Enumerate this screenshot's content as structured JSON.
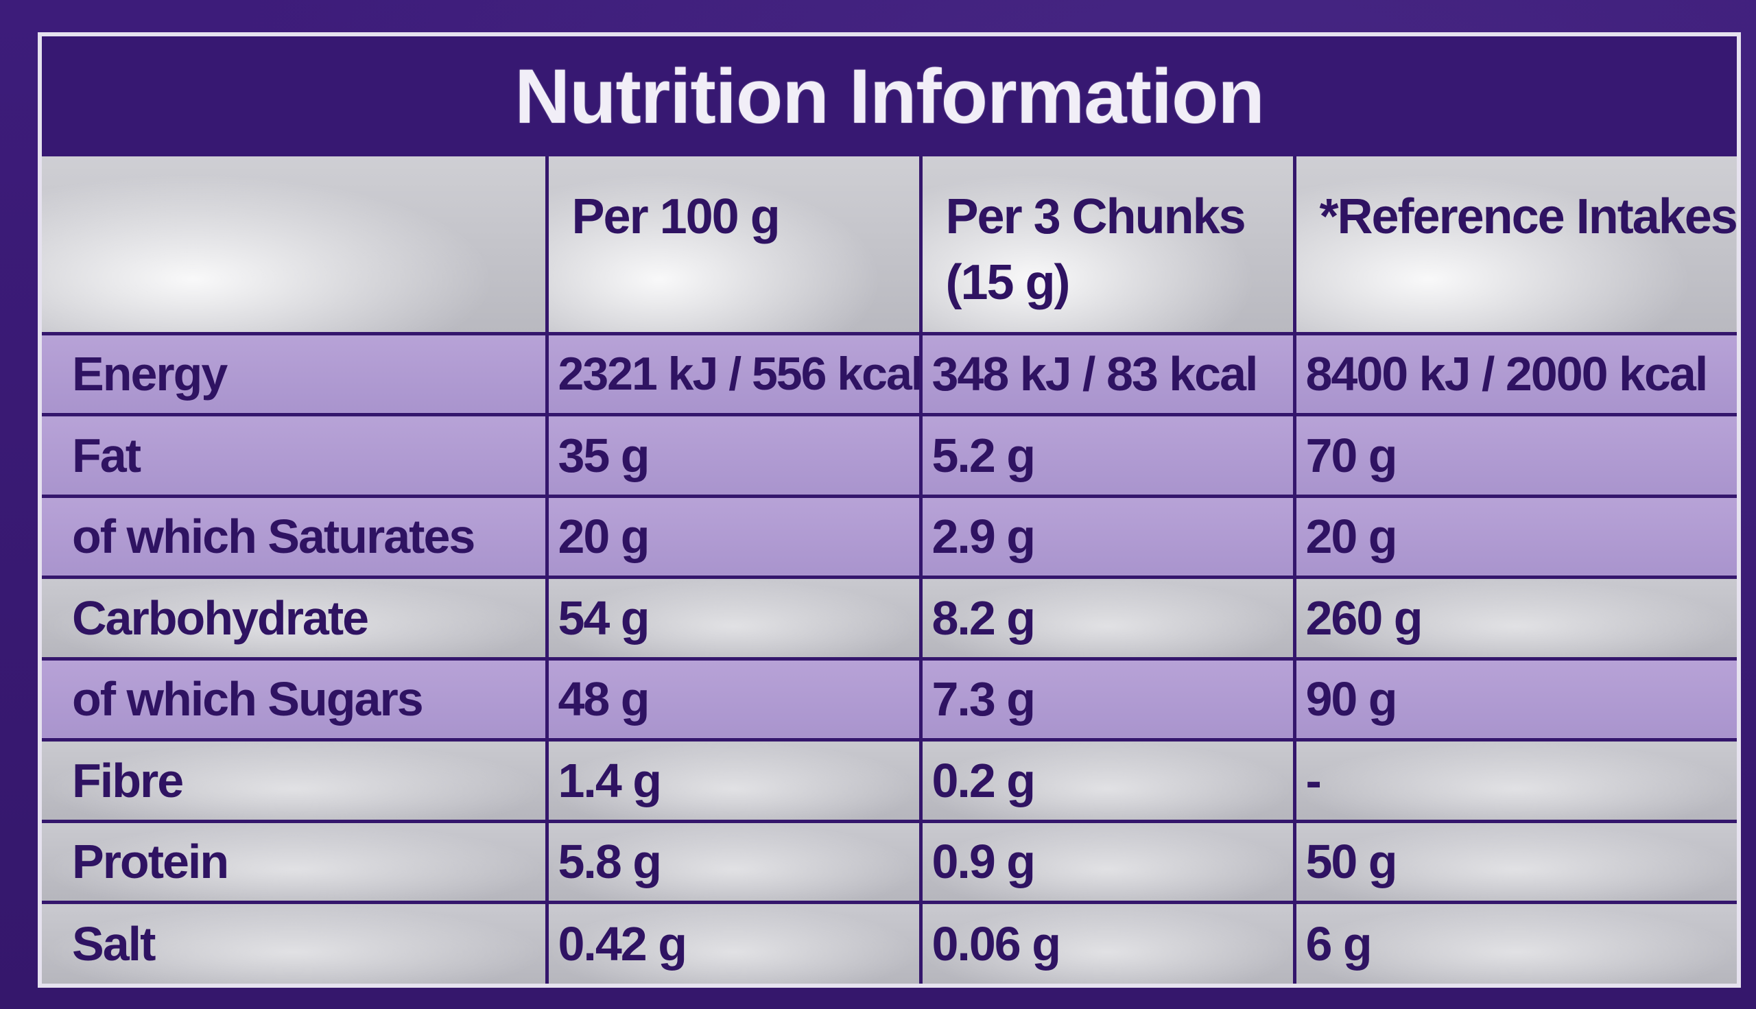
{
  "title": "Nutrition Information",
  "headers": {
    "nutrient": "",
    "per_100g": "Per 100 g",
    "per_portion": "Per 3 Chunks (15 g)",
    "reference": "*Reference Intakes"
  },
  "rows": [
    {
      "nutrient": "Energy",
      "per_100g": "2321 kJ / 556 kcal",
      "per_portion": "348 kJ / 83 kcal",
      "reference": "8400 kJ / 2000 kcal",
      "shaded": true
    },
    {
      "nutrient": "Fat",
      "per_100g": "35 g",
      "per_portion": "5.2 g",
      "reference": "70 g",
      "shaded": true
    },
    {
      "nutrient": "of which Saturates",
      "per_100g": "20 g",
      "per_portion": "2.9 g",
      "reference": "20 g",
      "shaded": true
    },
    {
      "nutrient": "Carbohydrate",
      "per_100g": "54 g",
      "per_portion": "8.2 g",
      "reference": "260 g",
      "shaded": false
    },
    {
      "nutrient": "of which Sugars",
      "per_100g": "48 g",
      "per_portion": "7.3 g",
      "reference": "90 g",
      "shaded": true
    },
    {
      "nutrient": "Fibre",
      "per_100g": "1.4 g",
      "per_portion": "0.2 g",
      "reference": "-",
      "shaded": false
    },
    {
      "nutrient": "Protein",
      "per_100g": "5.8 g",
      "per_portion": "0.9 g",
      "reference": "50 g",
      "shaded": false
    },
    {
      "nutrient": "Salt",
      "per_100g": "0.42 g",
      "per_portion": "0.06 g",
      "reference": "6 g",
      "shaded": false
    }
  ],
  "colors": {
    "brand_purple": "#371872",
    "text_purple": "#2f1362",
    "row_shade": "#b9a6d6",
    "row_light": "#c4c4ca"
  }
}
